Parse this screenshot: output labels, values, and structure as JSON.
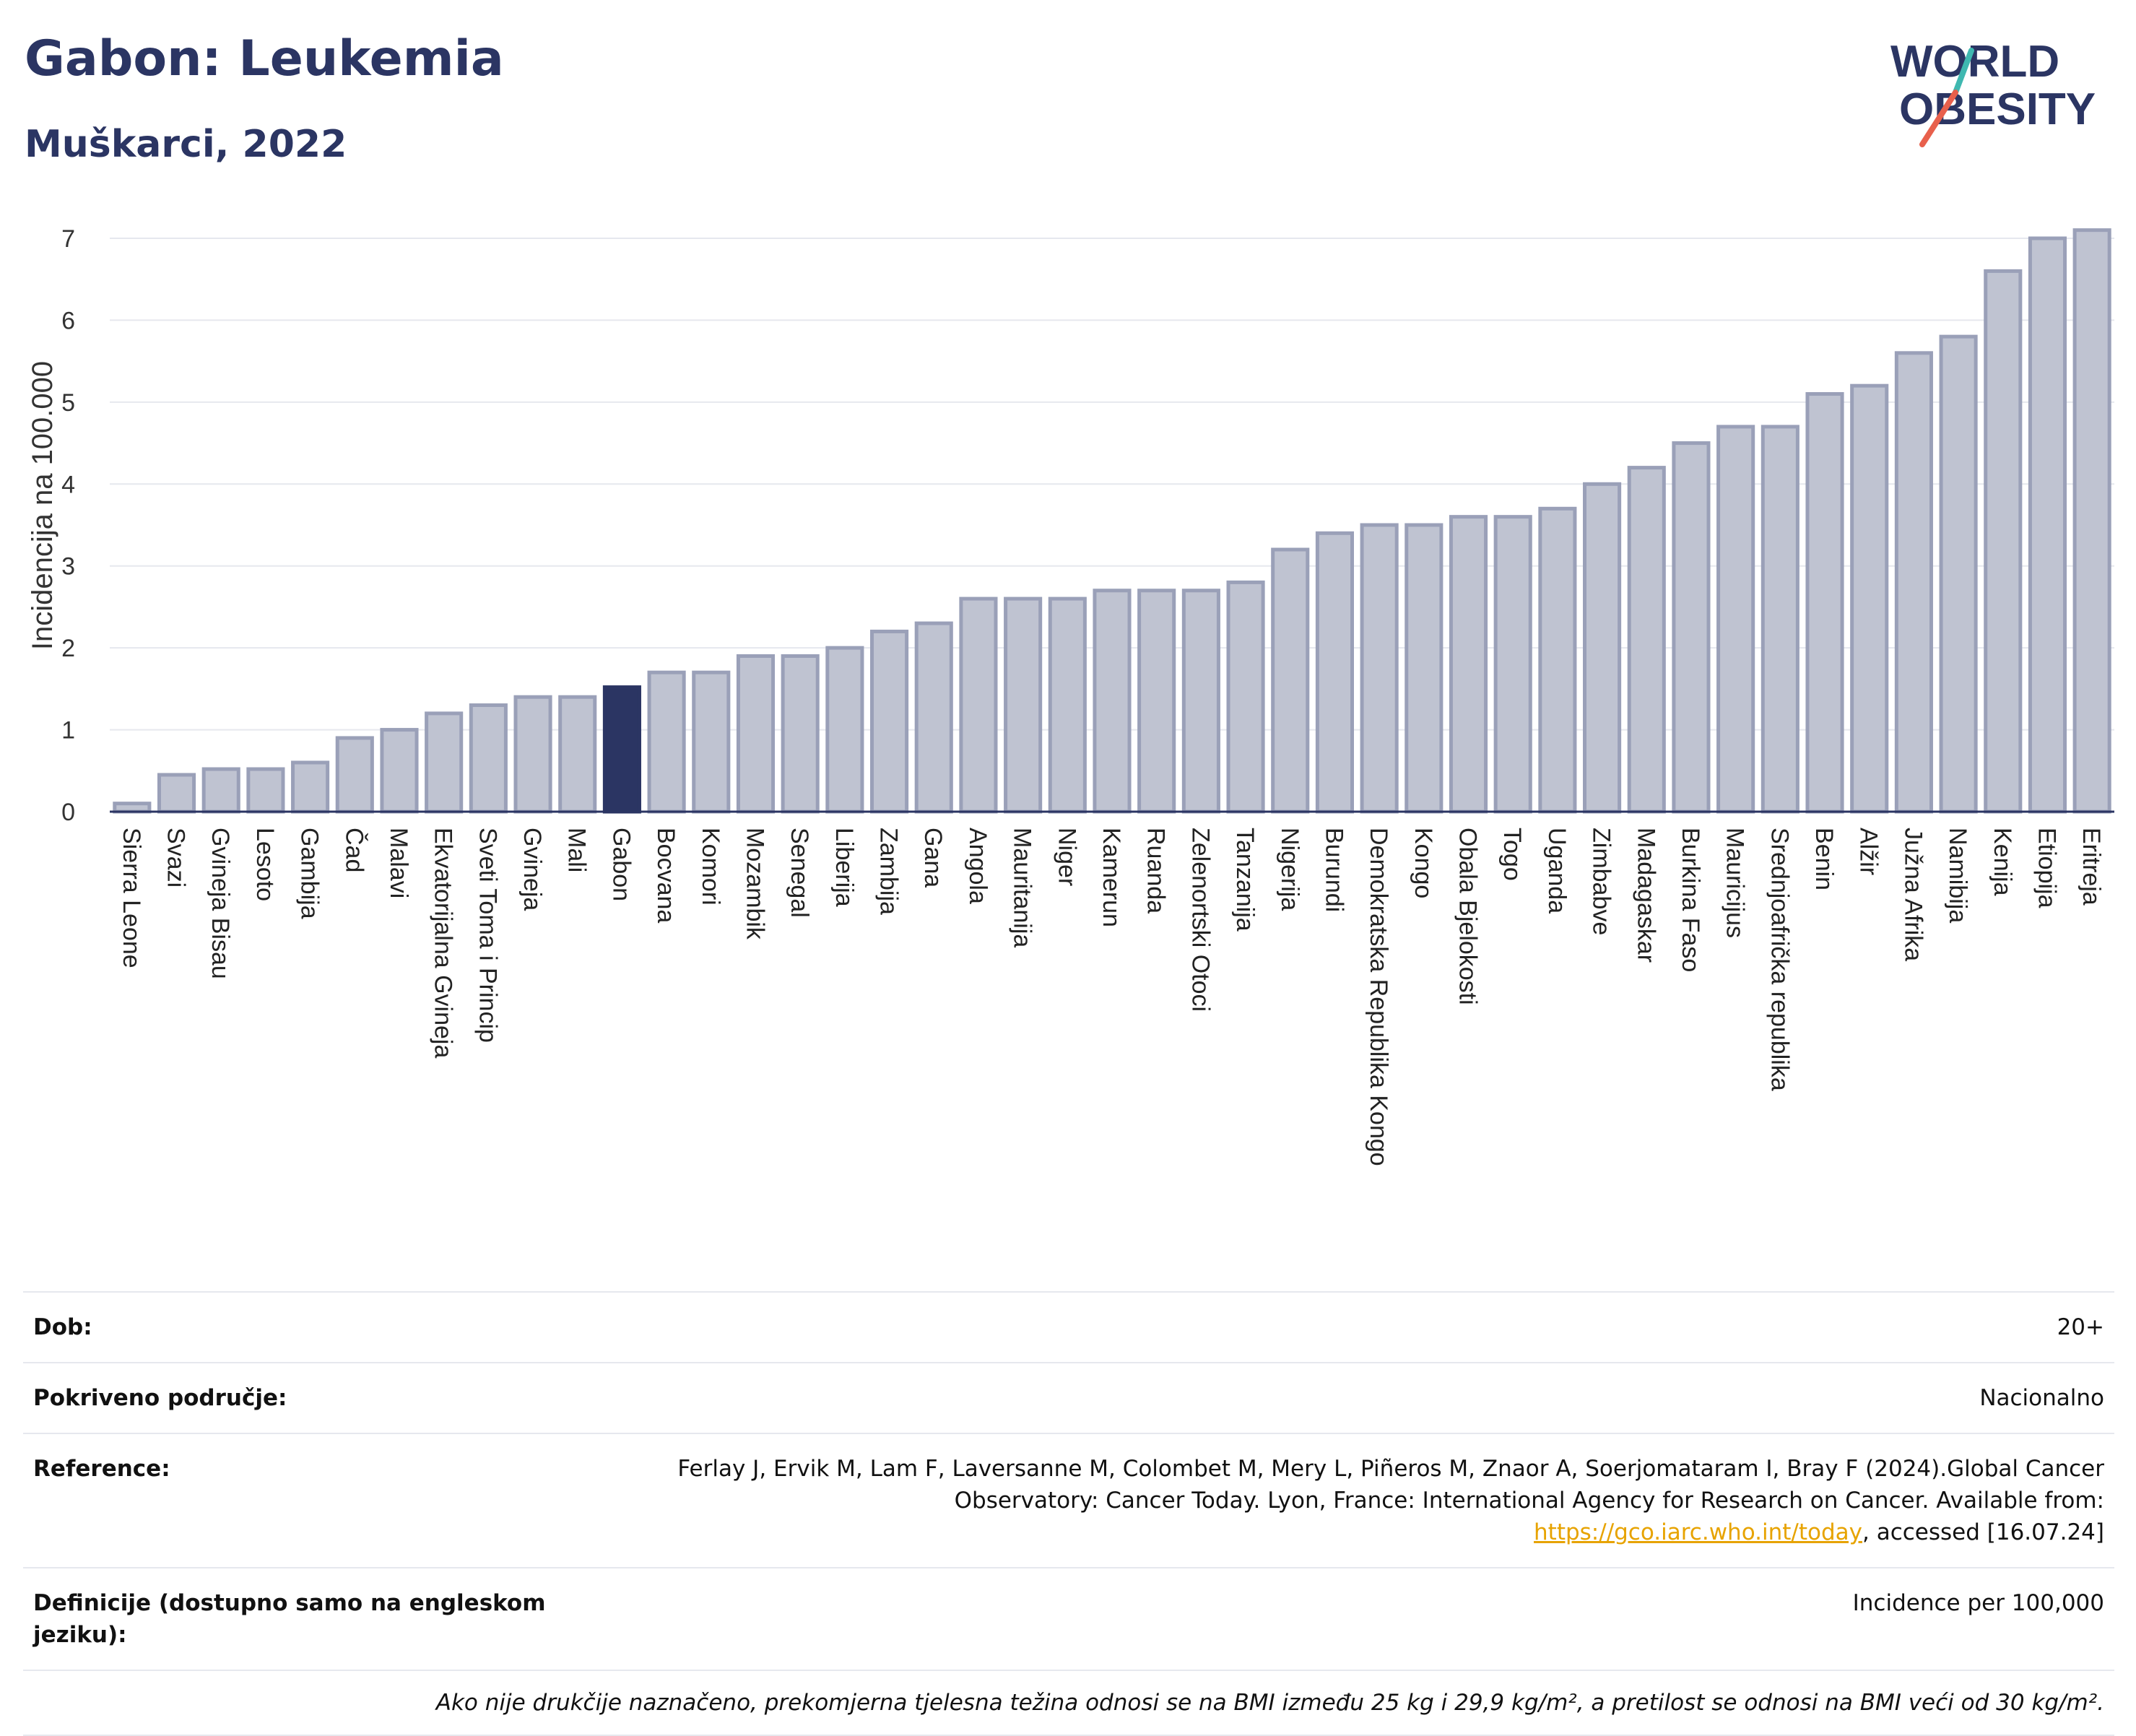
{
  "header": {
    "title": "Gabon: Leukemia",
    "subtitle": "Muškarci, 2022"
  },
  "logo": {
    "line1": "WORLD",
    "line2": "OBESITY",
    "icon": "world-obesity-logo"
  },
  "chart_data": {
    "type": "bar",
    "ylabel": "Incidencija na 100.000",
    "ylim": [
      0,
      7.2
    ],
    "yticks": [
      0,
      1,
      2,
      3,
      4,
      5,
      6,
      7
    ],
    "grid": true,
    "highlight": "Gabon",
    "colors": {
      "bar": "#bfc3d1",
      "bar_edge": "#9aa0b8",
      "highlight": "#2b3563",
      "grid": "#e6e8ee"
    },
    "categories": [
      "Sierra Leone",
      "Svazi",
      "Gvineja Bisau",
      "Lesoto",
      "Gambija",
      "Čad",
      "Malavi",
      "Ekvatorijalna Gvineja",
      "Sveti Toma i Princip",
      "Gvineja",
      "Mali",
      "Gabon",
      "Bocvana",
      "Komori",
      "Mozambik",
      "Senegal",
      "Liberija",
      "Zambija",
      "Gana",
      "Angola",
      "Mauritanija",
      "Niger",
      "Kamerun",
      "Ruanda",
      "Zelenortski Otoci",
      "Tanzanija",
      "Nigerija",
      "Burundi",
      "Demokratska Republika Kongo",
      "Kongo",
      "Obala Bjelokosti",
      "Togo",
      "Uganda",
      "Zimbabve",
      "Madagaskar",
      "Burkina Faso",
      "Mauricijus",
      "Srednjoafrička republika",
      "Benin",
      "Alžir",
      "Južna Afrika",
      "Namibija",
      "Kenija",
      "Etiopija",
      "Eritreja"
    ],
    "values": [
      0.1,
      0.45,
      0.52,
      0.52,
      0.6,
      0.9,
      1.0,
      1.2,
      1.3,
      1.4,
      1.4,
      1.52,
      1.7,
      1.7,
      1.9,
      1.9,
      2.0,
      2.2,
      2.3,
      2.6,
      2.6,
      2.6,
      2.7,
      2.7,
      2.7,
      2.8,
      3.2,
      3.4,
      3.5,
      3.5,
      3.6,
      3.6,
      3.7,
      4.0,
      4.2,
      4.5,
      4.7,
      4.7,
      5.1,
      5.2,
      5.6,
      5.8,
      6.6,
      7.0,
      7.1
    ]
  },
  "info": {
    "dob_label": "Dob:",
    "dob_value": "20+",
    "coverage_label": "Pokriveno područje:",
    "coverage_value": "Nacionalno",
    "reference_label": "Reference:",
    "reference_text": "Ferlay J, Ervik M, Lam F, Laversanne M, Colombet M, Mery L, Piñeros M, Znaor A, Soerjomataram I, Bray F (2024).Global Cancer Observatory: Cancer Today. Lyon, France: International Agency for Research on Cancer. Available from:",
    "reference_link": "https://gco.iarc.who.int/today",
    "reference_tail": ", accessed [16.07.24]",
    "definitions_label": "Definicije (dostupno samo na engleskom jeziku):",
    "definitions_value": "Incidence per 100,000",
    "note": "Ako nije drukčije naznačeno, prekomjerna tjelesna težina odnosi se na BMI između 25 kg i 29,9 kg/m², a pretilost se odnosi na BMI veći od 30 kg/m²."
  }
}
